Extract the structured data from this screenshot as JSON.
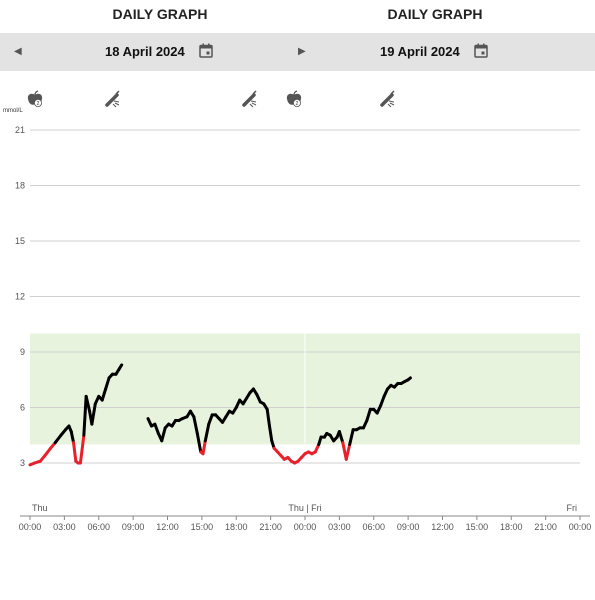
{
  "header": {
    "left_title": "DAILY GRAPH",
    "right_title": "DAILY GRAPH",
    "left_date": "18 April 2024",
    "right_date": "19 April 2024"
  },
  "icons": {
    "prev": "chevron-left-icon",
    "next": "chevron-right-icon",
    "calendar": "calendar-icon",
    "meal": "apple-icon",
    "insulin": "insulin-pen-icon"
  },
  "events": [
    {
      "type": "meal",
      "time": "00:25",
      "count": "2"
    },
    {
      "type": "insulin",
      "time": "07:10"
    },
    {
      "type": "insulin",
      "time": "19:25"
    },
    {
      "type": "meal",
      "time": "23:00",
      "count": "2"
    },
    {
      "type": "insulin",
      "time": "07:25",
      "day": 2
    }
  ],
  "colors": {
    "target_band": "#e7f3dd",
    "in_range": "#000000",
    "low": "#e8202a",
    "grid": "#d0d0d0"
  },
  "chart_data": {
    "type": "line",
    "ylabel": "mmol/L",
    "ylim": [
      0,
      22.5
    ],
    "yticks": [
      3,
      6,
      9,
      12,
      15,
      18,
      21
    ],
    "target_range": [
      4,
      10
    ],
    "low_threshold": 4,
    "x_range_hours": [
      0,
      48
    ],
    "xtick_labels": [
      "00:00",
      "03:00",
      "06:00",
      "09:00",
      "12:00",
      "15:00",
      "18:00",
      "21:00",
      "00:00",
      "03:00",
      "06:00",
      "09:00",
      "12:00",
      "15:00",
      "18:00",
      "21:00",
      "00:00"
    ],
    "day_labels": [
      "Thu",
      "Thu | Fri",
      "Fri"
    ],
    "series": [
      {
        "values": [
          [
            0.0,
            2.9
          ],
          [
            0.4,
            3.0
          ],
          [
            0.9,
            3.1
          ],
          [
            1.3,
            3.4
          ],
          [
            1.8,
            3.8
          ],
          [
            2.2,
            4.1
          ],
          [
            2.7,
            4.5
          ],
          [
            3.1,
            4.8
          ],
          [
            3.4,
            5.0
          ],
          [
            3.6,
            4.7
          ],
          [
            3.8,
            4.1
          ],
          [
            4.0,
            3.1
          ],
          [
            4.2,
            3.0
          ],
          [
            4.4,
            3.0
          ],
          [
            4.7,
            4.5
          ],
          [
            4.9,
            6.6
          ],
          [
            5.2,
            5.8
          ],
          [
            5.4,
            5.1
          ],
          [
            5.7,
            6.2
          ],
          [
            6.0,
            6.6
          ],
          [
            6.3,
            6.4
          ],
          [
            6.6,
            7.0
          ],
          [
            6.9,
            7.6
          ],
          [
            7.2,
            7.8
          ],
          [
            7.5,
            7.8
          ],
          [
            7.8,
            8.1
          ],
          [
            8.0,
            8.3
          ]
        ]
      },
      {
        "values": [
          [
            10.3,
            5.4
          ],
          [
            10.6,
            5.0
          ],
          [
            10.9,
            5.1
          ],
          [
            11.2,
            4.6
          ],
          [
            11.5,
            4.2
          ],
          [
            11.8,
            4.9
          ],
          [
            12.1,
            5.1
          ],
          [
            12.4,
            5.0
          ],
          [
            12.7,
            5.3
          ],
          [
            13.0,
            5.3
          ],
          [
            13.3,
            5.4
          ],
          [
            13.7,
            5.5
          ],
          [
            14.0,
            5.8
          ],
          [
            14.3,
            5.5
          ],
          [
            14.6,
            4.6
          ],
          [
            14.9,
            3.6
          ],
          [
            15.1,
            3.5
          ],
          [
            15.3,
            4.2
          ],
          [
            15.6,
            5.1
          ],
          [
            15.9,
            5.6
          ],
          [
            16.2,
            5.6
          ],
          [
            16.5,
            5.4
          ],
          [
            16.8,
            5.2
          ],
          [
            17.1,
            5.5
          ],
          [
            17.4,
            5.8
          ],
          [
            17.7,
            5.7
          ],
          [
            18.0,
            6.0
          ],
          [
            18.3,
            6.4
          ],
          [
            18.6,
            6.2
          ],
          [
            18.9,
            6.5
          ],
          [
            19.2,
            6.8
          ],
          [
            19.5,
            7.0
          ],
          [
            19.8,
            6.7
          ],
          [
            20.1,
            6.3
          ],
          [
            20.4,
            6.2
          ],
          [
            20.7,
            5.9
          ],
          [
            20.9,
            5.0
          ],
          [
            21.1,
            4.2
          ],
          [
            21.3,
            3.8
          ],
          [
            21.6,
            3.6
          ],
          [
            21.9,
            3.4
          ],
          [
            22.2,
            3.2
          ],
          [
            22.5,
            3.3
          ],
          [
            22.8,
            3.1
          ],
          [
            23.1,
            3.0
          ],
          [
            23.4,
            3.1
          ],
          [
            23.7,
            3.3
          ],
          [
            24.0,
            3.5
          ],
          [
            24.3,
            3.6
          ],
          [
            24.6,
            3.5
          ],
          [
            24.9,
            3.6
          ],
          [
            25.2,
            4.0
          ],
          [
            25.4,
            4.4
          ],
          [
            25.7,
            4.4
          ],
          [
            25.9,
            4.6
          ],
          [
            26.2,
            4.5
          ],
          [
            26.5,
            4.2
          ],
          [
            26.8,
            4.4
          ],
          [
            27.0,
            4.7
          ],
          [
            27.3,
            4.1
          ],
          [
            27.6,
            3.2
          ],
          [
            27.9,
            4.0
          ],
          [
            28.2,
            4.8
          ],
          [
            28.5,
            4.8
          ],
          [
            28.8,
            4.9
          ],
          [
            29.1,
            4.9
          ],
          [
            29.4,
            5.3
          ],
          [
            29.7,
            5.9
          ],
          [
            30.0,
            5.9
          ],
          [
            30.3,
            5.7
          ],
          [
            30.6,
            6.1
          ],
          [
            30.9,
            6.6
          ],
          [
            31.2,
            7.0
          ],
          [
            31.5,
            7.2
          ],
          [
            31.8,
            7.1
          ],
          [
            32.1,
            7.3
          ],
          [
            32.4,
            7.3
          ],
          [
            32.7,
            7.4
          ],
          [
            33.0,
            7.5
          ],
          [
            33.2,
            7.6
          ]
        ]
      }
    ]
  }
}
